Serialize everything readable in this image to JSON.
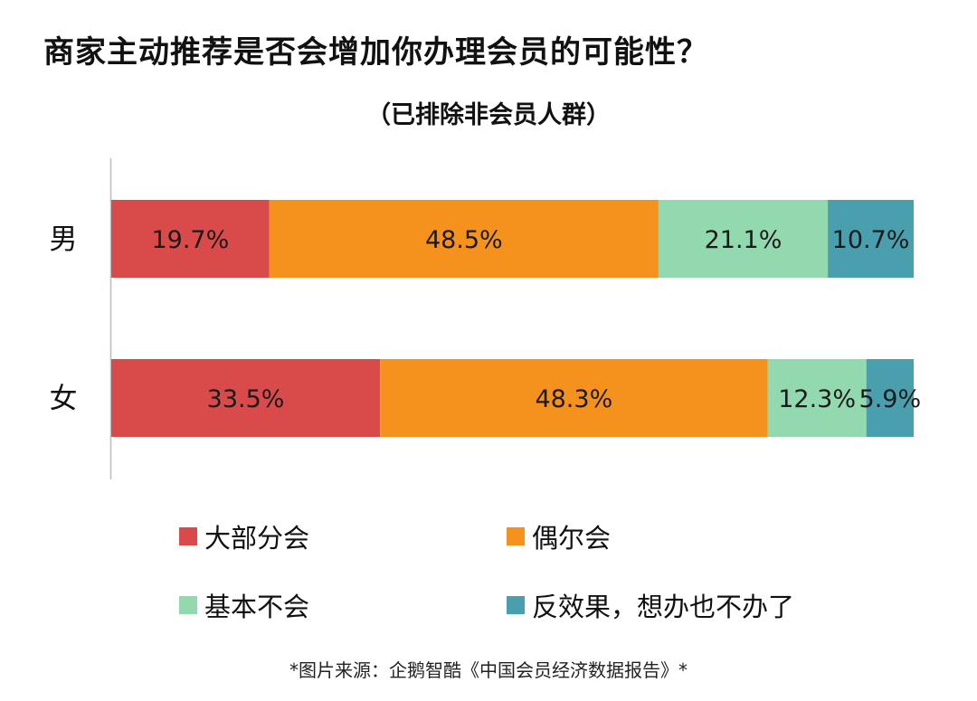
{
  "title": "商家主动推荐是否会增加你办理会员的可能性？",
  "subtitle": "（已排除非会员人群）",
  "source": "*图片来源：企鹅智酷《中国会员经济数据报告》*",
  "chart_data": {
    "type": "bar",
    "orientation": "horizontal",
    "stacked": true,
    "normalized": "percent",
    "categories": [
      "男",
      "女"
    ],
    "series": [
      {
        "name": "大部分会",
        "color": "#d94a4a",
        "values": [
          19.7,
          33.5
        ]
      },
      {
        "name": "偶尔会",
        "color": "#f5921e",
        "values": [
          48.5,
          48.3
        ]
      },
      {
        "name": "基本不会",
        "color": "#93d9b0",
        "values": [
          21.1,
          12.3
        ]
      },
      {
        "name": "反效果，想办也不办了",
        "color": "#4a9fae",
        "values": [
          10.7,
          5.9
        ]
      }
    ],
    "data_labels": [
      [
        "19.7%",
        "48.5%",
        "21.1%",
        "10.7%"
      ],
      [
        "33.5%",
        "48.3%",
        "12.3%",
        "5.9%"
      ]
    ],
    "xlim": [
      0,
      100
    ],
    "grid": false,
    "legend": "bottom"
  }
}
